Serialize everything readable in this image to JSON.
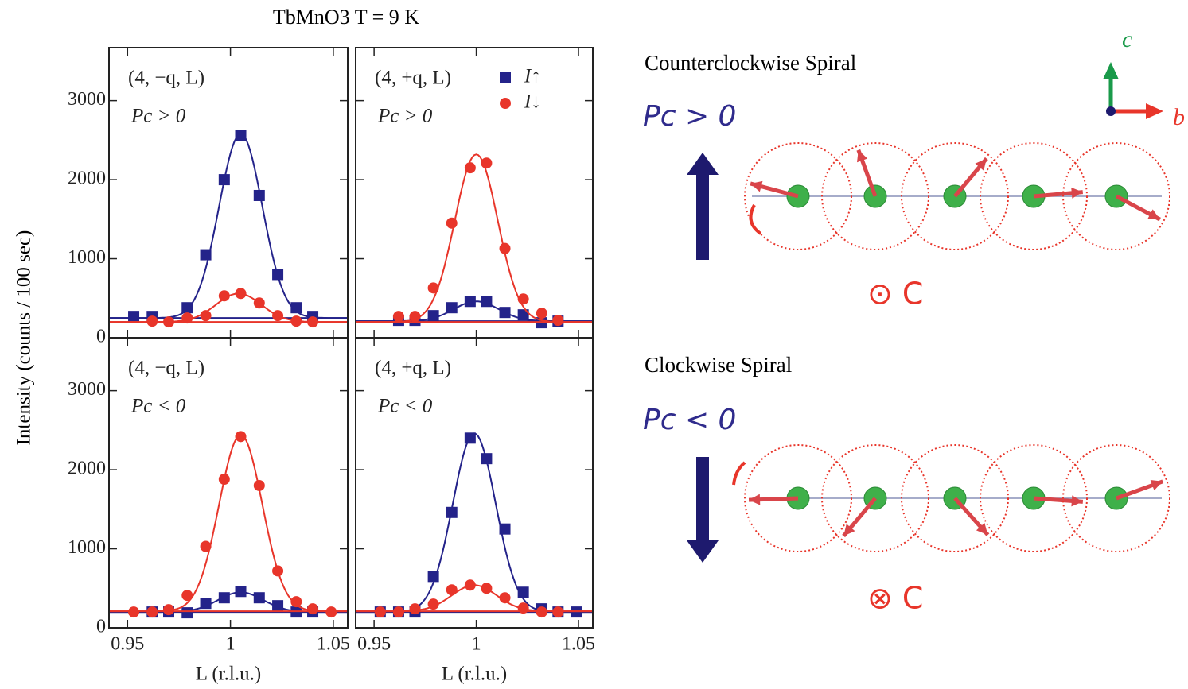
{
  "figure": {
    "title": "TbMnO3  T = 9 K",
    "ylabel": "Intensity (counts / 100 sec)"
  },
  "chart_data": [
    {
      "type": "scatter",
      "label": "(4, −q, L)",
      "condition": "Pc > 0",
      "x": [
        0.953,
        0.962,
        0.97,
        0.979,
        0.988,
        0.997,
        1.005,
        1.014,
        1.023,
        1.032,
        1.04,
        1.049
      ],
      "xlim": [
        0.941,
        1.057
      ],
      "ylim": [
        0,
        3670
      ],
      "xticks": [
        0.95,
        1,
        1.05
      ],
      "yticks": [
        0,
        1000,
        2000,
        3000
      ],
      "xtick_labels": false,
      "ytick_labels": true,
      "series": [
        {
          "name": "I↑",
          "color": "#24238a",
          "marker": "square",
          "values": [
            270,
            270,
            null,
            380,
            1050,
            2000,
            2560,
            1800,
            800,
            380,
            270,
            null
          ],
          "fit": {
            "background": 250,
            "amplitude": 2330,
            "center": 1.005,
            "sigma": 0.0105
          }
        },
        {
          "name": "I↓",
          "color": "#e8352a",
          "marker": "circle",
          "values": [
            null,
            210,
            200,
            250,
            280,
            530,
            560,
            440,
            280,
            210,
            200,
            null
          ],
          "fit": {
            "background": 200,
            "amplitude": 360,
            "center": 1.004,
            "sigma": 0.011
          }
        }
      ]
    },
    {
      "type": "scatter",
      "label": "(4, +q, L)",
      "condition": "Pc > 0",
      "legend": "top-right",
      "x": [
        0.953,
        0.962,
        0.97,
        0.979,
        0.988,
        0.997,
        1.005,
        1.014,
        1.023,
        1.032,
        1.04,
        1.049
      ],
      "xlim": [
        0.941,
        1.057
      ],
      "ylim": [
        0,
        3670
      ],
      "xticks": [
        0.95,
        1,
        1.05
      ],
      "yticks": [
        0,
        1000,
        2000,
        3000
      ],
      "xtick_labels": false,
      "ytick_labels": false,
      "series": [
        {
          "name": "I↑",
          "color": "#24238a",
          "marker": "square",
          "values": [
            null,
            220,
            220,
            280,
            380,
            460,
            460,
            320,
            290,
            190,
            210,
            null
          ],
          "fit": {
            "background": 210,
            "amplitude": 250,
            "center": 1.0,
            "sigma": 0.011
          }
        },
        {
          "name": "I↓",
          "color": "#e8352a",
          "marker": "circle",
          "values": [
            null,
            270,
            270,
            630,
            1450,
            2150,
            2210,
            1130,
            490,
            310,
            220,
            null
          ],
          "fit": {
            "background": 200,
            "amplitude": 2120,
            "center": 1.0,
            "sigma": 0.0105
          }
        }
      ]
    },
    {
      "type": "scatter",
      "label": "(4, −q, L)",
      "condition": "Pc < 0",
      "xlabel": "L (r.l.u.)",
      "x": [
        0.953,
        0.962,
        0.97,
        0.979,
        0.988,
        0.997,
        1.005,
        1.014,
        1.023,
        1.032,
        1.04,
        1.049
      ],
      "xlim": [
        0.941,
        1.057
      ],
      "ylim": [
        0,
        3670
      ],
      "xticks": [
        0.95,
        1,
        1.05
      ],
      "yticks": [
        0,
        1000,
        2000,
        3000
      ],
      "xtick_labels": true,
      "ytick_labels": true,
      "series": [
        {
          "name": "I↑",
          "color": "#24238a",
          "marker": "square",
          "values": [
            null,
            200,
            200,
            190,
            310,
            380,
            460,
            380,
            280,
            200,
            200,
            null
          ],
          "fit": {
            "background": 200,
            "amplitude": 250,
            "center": 1.005,
            "sigma": 0.011
          }
        },
        {
          "name": "I↓",
          "color": "#e8352a",
          "marker": "circle",
          "values": [
            200,
            200,
            230,
            410,
            1030,
            1880,
            2420,
            1800,
            720,
            330,
            240,
            200
          ],
          "fit": {
            "background": 210,
            "amplitude": 2230,
            "center": 1.005,
            "sigma": 0.0105
          }
        }
      ]
    },
    {
      "type": "scatter",
      "label": "(4, +q, L)",
      "condition": "Pc < 0",
      "xlabel": "L (r.l.u.)",
      "x": [
        0.953,
        0.962,
        0.97,
        0.979,
        0.988,
        0.997,
        1.005,
        1.014,
        1.023,
        1.032,
        1.04,
        1.049
      ],
      "xlim": [
        0.941,
        1.057
      ],
      "ylim": [
        0,
        3670
      ],
      "xticks": [
        0.95,
        1,
        1.05
      ],
      "yticks": [
        0,
        1000,
        2000,
        3000
      ],
      "xtick_labels": true,
      "ytick_labels": false,
      "series": [
        {
          "name": "I↑",
          "color": "#24238a",
          "marker": "square",
          "values": [
            200,
            200,
            200,
            650,
            1460,
            2400,
            2140,
            1250,
            450,
            240,
            200,
            200
          ],
          "fit": {
            "background": 200,
            "amplitude": 2260,
            "center": 0.999,
            "sigma": 0.0105
          }
        },
        {
          "name": "I↓",
          "color": "#e8352a",
          "marker": "circle",
          "values": [
            200,
            200,
            240,
            300,
            480,
            540,
            500,
            380,
            250,
            200,
            200,
            null
          ],
          "fit": {
            "background": 210,
            "amplitude": 330,
            "center": 0.999,
            "sigma": 0.011
          }
        }
      ]
    }
  ],
  "diagram": {
    "top": {
      "heading": "Counterclockwise Spiral",
      "polarization": "Pc > 0",
      "chirality": "⊙ C"
    },
    "bottom": {
      "heading": "Clockwise Spiral",
      "polarization": "Pc < 0",
      "chirality": "⊗ C"
    },
    "axes": {
      "vertical": "c",
      "horizontal": "b"
    }
  }
}
